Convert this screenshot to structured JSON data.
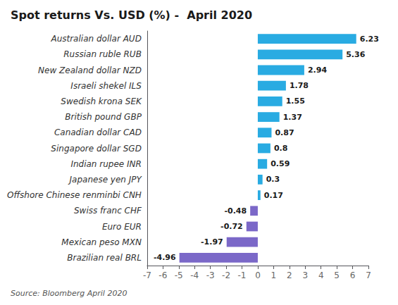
{
  "chart_data": {
    "type": "bar",
    "orientation": "horizontal",
    "title": "Spot returns Vs. USD (%) -  April 2020",
    "annotation": "Source: Bloomberg April 2020",
    "categories": [
      "Brazilian real BRL",
      "Mexican peso MXN",
      "Euro EUR",
      "Swiss franc CHF",
      "Offshore Chinese renminbi CNH",
      "Japanese yen JPY",
      "Indian rupee INR",
      "Singapore dollar SGD",
      "Canadian dollar CAD",
      "British pound GBP",
      "Swedish krona SEK",
      "Israeli shekel ILS",
      "New Zealand dollar NZD",
      "Russian ruble RUB",
      "Australian dollar AUD"
    ],
    "values": [
      -4.96,
      -1.97,
      -0.72,
      -0.48,
      0.17,
      0.3,
      0.59,
      0.8,
      0.87,
      1.37,
      1.55,
      1.78,
      2.94,
      5.36,
      6.23
    ],
    "colors": [
      "#7B68C8",
      "#7B68C8",
      "#7B68C8",
      "#7B68C8",
      "#29ABE2",
      "#29ABE2",
      "#29ABE2",
      "#29ABE2",
      "#29ABE2",
      "#29ABE2",
      "#29ABE2",
      "#29ABE2",
      "#29ABE2",
      "#29ABE2",
      "#29ABE2"
    ],
    "xlim": [
      -7,
      7
    ],
    "xticks": [
      -7,
      -6,
      -5,
      -4,
      -3,
      -2,
      -1,
      0,
      1,
      2,
      3,
      4,
      5,
      6,
      7
    ],
    "data_labels": true,
    "grid": false
  }
}
